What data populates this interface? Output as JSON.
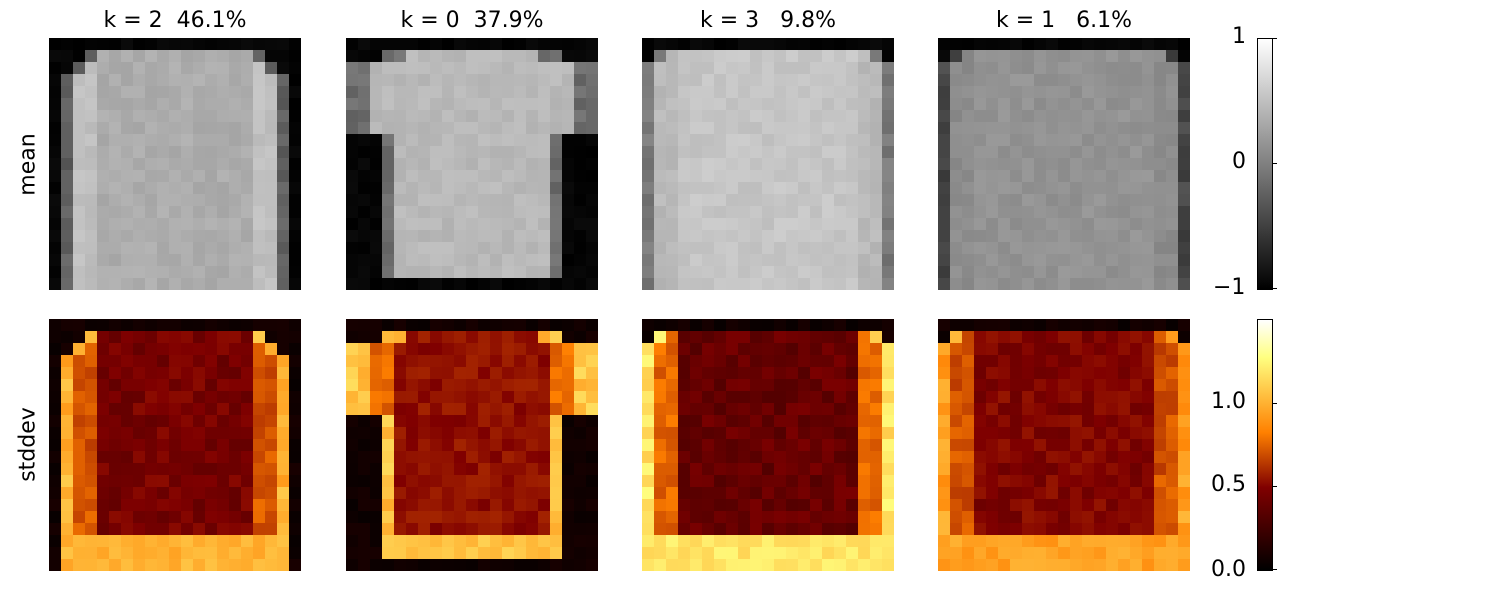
{
  "chart_data": {
    "type": "heatmap",
    "panels": [
      {
        "k": 2,
        "title": "k = 2  46.1%",
        "garment": "long-sleeve",
        "mean_body": 0.35,
        "mean_sleeve": 0.5,
        "std_edge": 0.9,
        "std_inner": 0.35
      },
      {
        "k": 0,
        "title": "k = 0  37.9%",
        "garment": "tee",
        "mean_body": 0.45,
        "mean_sleeve": 0.45,
        "std_edge": 0.95,
        "std_inner": 0.42
      },
      {
        "k": 3,
        "title": "k = 3   9.8%",
        "garment": "wide-long",
        "mean_body": 0.55,
        "mean_sleeve": 0.45,
        "std_edge": 1.05,
        "std_inner": 0.3
      },
      {
        "k": 1,
        "title": "k = 1   6.1%",
        "garment": "wide-long-dim",
        "mean_body": 0.15,
        "mean_sleeve": 0.1,
        "std_edge": 0.85,
        "std_inner": 0.38
      }
    ],
    "rows": [
      "mean",
      "stddev"
    ],
    "colorbars": [
      {
        "name": "mean",
        "cmap": "gray",
        "range": [
          -1,
          1
        ],
        "ticks": [
          "1",
          "0",
          "−1"
        ],
        "tick_values": [
          1,
          0,
          -1
        ]
      },
      {
        "name": "stddev",
        "cmap": "afmhot",
        "range": [
          0,
          1.5
        ],
        "ticks": [
          "1.0",
          "0.5",
          "0.0"
        ],
        "tick_values": [
          1.0,
          0.5,
          0.0
        ]
      }
    ]
  }
}
